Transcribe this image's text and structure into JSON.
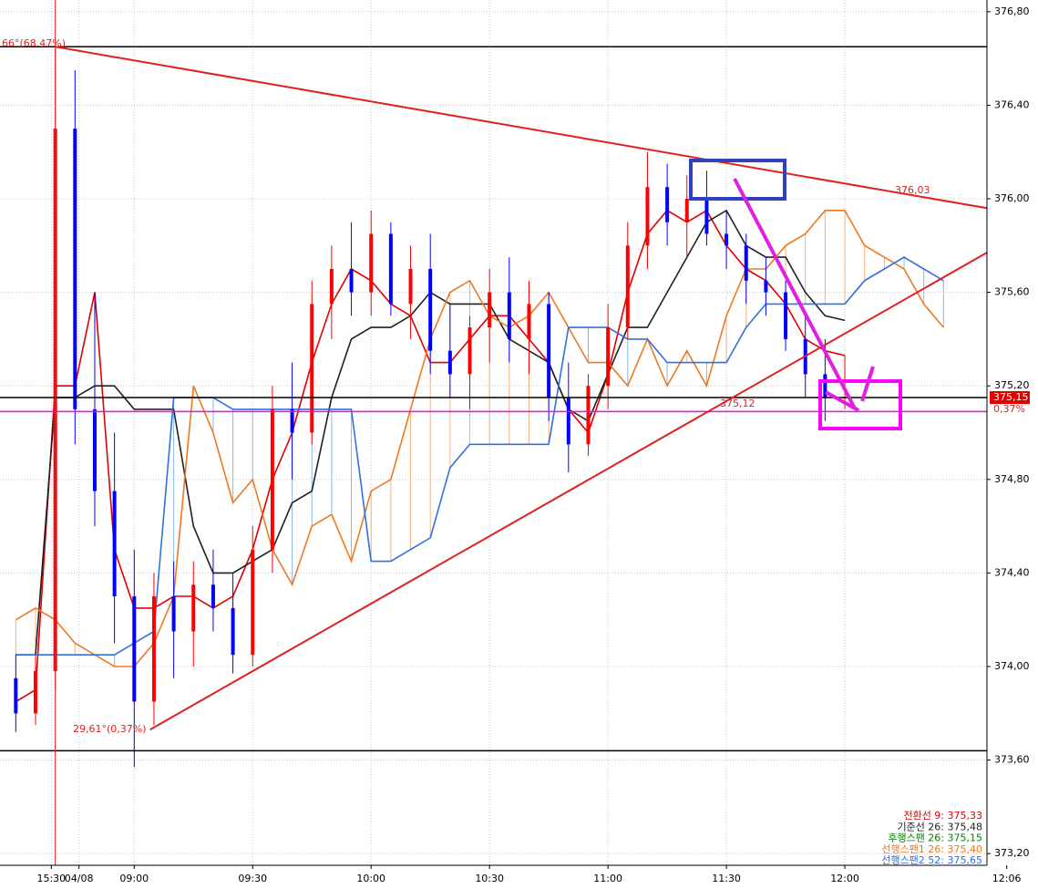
{
  "chart_data": {
    "type": "candlestick",
    "xlim": [
      -34,
      216
    ],
    "xticks": [
      {
        "value": -21,
        "label": "15:30"
      },
      {
        "value": -14,
        "label": "04/08"
      },
      {
        "value": 0,
        "label": "09:00"
      },
      {
        "value": 30,
        "label": "09:30"
      },
      {
        "value": 60,
        "label": "10:00"
      },
      {
        "value": 90,
        "label": "10:30"
      },
      {
        "value": 120,
        "label": "11:00"
      },
      {
        "value": 150,
        "label": "11:30"
      },
      {
        "value": 180,
        "label": "12:00"
      },
      {
        "value": 221,
        "label": "12:06"
      }
    ],
    "ylim": [
      373.15,
      376.85
    ],
    "yticks": [
      {
        "value": 373.2,
        "label": "373,20"
      },
      {
        "value": 373.6,
        "label": "373,60"
      },
      {
        "value": 374.0,
        "label": "374,00"
      },
      {
        "value": 374.4,
        "label": "374,40"
      },
      {
        "value": 374.8,
        "label": "374,80"
      },
      {
        "value": 375.2,
        "label": "375,20"
      },
      {
        "value": 375.6,
        "label": "375,60"
      },
      {
        "value": 376.0,
        "label": "376,00"
      },
      {
        "value": 376.4,
        "label": "376,40"
      },
      {
        "value": 376.8,
        "label": "376,80"
      }
    ],
    "grid": true,
    "up_color": "#ff0000",
    "down_color": "#0000ff",
    "candles": {
      "x": [
        -30,
        -25,
        -20,
        -15,
        -10,
        -5,
        0,
        5,
        10,
        15,
        20,
        25,
        30,
        35,
        40,
        45,
        50,
        55,
        60,
        65,
        70,
        75,
        80,
        85,
        90,
        95,
        100,
        105,
        110,
        115,
        120,
        125,
        130,
        135,
        140,
        145,
        150,
        155,
        160,
        165,
        170,
        175,
        180
      ],
      "open": [
        373.95,
        373.8,
        373.98,
        376.3,
        375.1,
        374.75,
        374.3,
        373.85,
        374.3,
        374.15,
        374.35,
        374.25,
        374.05,
        374.5,
        375.1,
        375.0,
        375.55,
        375.7,
        375.6,
        375.85,
        375.55,
        375.7,
        375.35,
        375.25,
        375.45,
        375.6,
        375.4,
        375.55,
        375.15,
        374.95,
        375.2,
        375.45,
        375.8,
        376.05,
        375.9,
        376.0,
        375.85,
        375.8,
        375.65,
        375.6,
        375.4,
        375.25,
        375.15
      ],
      "high": [
        374.05,
        374.05,
        376.65,
        376.55,
        375.6,
        375.0,
        374.5,
        374.4,
        374.45,
        374.45,
        374.5,
        374.4,
        374.6,
        375.2,
        375.3,
        375.65,
        375.8,
        375.9,
        375.95,
        375.9,
        375.8,
        375.85,
        375.55,
        375.5,
        375.7,
        375.75,
        375.65,
        375.6,
        375.3,
        375.25,
        375.55,
        375.9,
        376.2,
        376.15,
        376.1,
        376.12,
        375.95,
        375.85,
        375.75,
        375.65,
        375.5,
        375.4,
        375.33
      ],
      "low": [
        373.72,
        373.75,
        373.9,
        374.95,
        374.6,
        374.1,
        373.57,
        373.75,
        373.95,
        374.0,
        374.15,
        373.97,
        374.0,
        374.4,
        374.8,
        374.95,
        375.4,
        375.5,
        375.5,
        375.5,
        375.4,
        375.25,
        375.15,
        375.1,
        375.3,
        375.3,
        375.25,
        375.05,
        374.83,
        374.9,
        375.1,
        375.4,
        375.7,
        375.8,
        375.75,
        375.8,
        375.7,
        375.55,
        375.5,
        375.35,
        375.15,
        375.05,
        375.1
      ],
      "close": [
        373.8,
        373.98,
        376.3,
        375.1,
        374.75,
        374.3,
        373.85,
        374.3,
        374.15,
        374.35,
        374.25,
        374.05,
        374.5,
        375.1,
        375.0,
        375.55,
        375.7,
        375.6,
        375.85,
        375.55,
        375.7,
        375.35,
        375.25,
        375.45,
        375.6,
        375.4,
        375.55,
        375.15,
        374.95,
        375.2,
        375.45,
        375.8,
        376.05,
        375.9,
        376.0,
        375.85,
        375.8,
        375.65,
        375.6,
        375.4,
        375.25,
        375.15,
        375.15
      ]
    },
    "series": [
      {
        "name": "전환선 9: 375,33",
        "color": "#e00000",
        "x": [
          -30,
          -25,
          -20,
          -15,
          -10,
          -5,
          0,
          5,
          10,
          15,
          20,
          25,
          30,
          35,
          40,
          45,
          50,
          55,
          60,
          65,
          70,
          75,
          80,
          85,
          90,
          95,
          100,
          105,
          110,
          115,
          120,
          125,
          130,
          135,
          140,
          145,
          150,
          155,
          160,
          165,
          170,
          175,
          180
        ],
        "values": [
          373.85,
          373.9,
          375.2,
          375.2,
          375.6,
          374.5,
          374.25,
          374.25,
          374.3,
          374.3,
          374.25,
          374.3,
          374.5,
          374.8,
          375.0,
          375.3,
          375.55,
          375.7,
          375.65,
          375.55,
          375.5,
          375.3,
          375.3,
          375.4,
          375.5,
          375.5,
          375.4,
          375.3,
          375.1,
          375.0,
          375.25,
          375.6,
          375.85,
          375.95,
          375.9,
          375.95,
          375.8,
          375.7,
          375.65,
          375.55,
          375.4,
          375.35,
          375.33
        ]
      },
      {
        "name": "기준선 26: 375,48",
        "color": "#202020",
        "x": [
          -30,
          -25,
          -20,
          -15,
          -10,
          -5,
          0,
          5,
          10,
          15,
          20,
          25,
          30,
          35,
          40,
          45,
          50,
          55,
          60,
          65,
          70,
          75,
          80,
          85,
          90,
          95,
          100,
          105,
          110,
          115,
          120,
          125,
          130,
          135,
          140,
          145,
          150,
          155,
          160,
          165,
          170,
          175,
          180
        ],
        "values": [
          374.05,
          374.05,
          375.15,
          375.15,
          375.2,
          375.2,
          375.1,
          375.1,
          375.1,
          374.6,
          374.4,
          374.4,
          374.45,
          374.5,
          374.7,
          374.75,
          375.15,
          375.4,
          375.45,
          375.45,
          375.5,
          375.6,
          375.55,
          375.55,
          375.55,
          375.4,
          375.35,
          375.3,
          375.1,
          375.05,
          375.25,
          375.45,
          375.45,
          375.6,
          375.75,
          375.9,
          375.95,
          375.8,
          375.75,
          375.75,
          375.6,
          375.5,
          375.48
        ]
      },
      {
        "name": "후행스팬 26: 375,15",
        "color": "#008000",
        "x": [],
        "values": []
      },
      {
        "name": "선행스팬1 26: 375,40",
        "color": "#f07820",
        "x": [
          -30,
          -25,
          -20,
          -15,
          -10,
          -5,
          0,
          5,
          10,
          15,
          20,
          25,
          30,
          35,
          40,
          45,
          50,
          55,
          60,
          65,
          70,
          75,
          80,
          85,
          90,
          95,
          100,
          105,
          110,
          115,
          120,
          125,
          130,
          135,
          140,
          145,
          150,
          155,
          160,
          165,
          170,
          175,
          180,
          185,
          190,
          195,
          200,
          205
        ],
        "values": [
          374.2,
          374.25,
          374.2,
          374.1,
          374.05,
          374.0,
          374.0,
          374.1,
          374.3,
          375.2,
          375.0,
          374.7,
          374.8,
          374.5,
          374.35,
          374.6,
          374.65,
          374.45,
          374.75,
          374.8,
          375.1,
          375.4,
          375.6,
          375.65,
          375.5,
          375.45,
          375.5,
          375.6,
          375.45,
          375.3,
          375.3,
          375.2,
          375.4,
          375.2,
          375.35,
          375.2,
          375.5,
          375.7,
          375.7,
          375.8,
          375.85,
          375.95,
          375.95,
          375.8,
          375.75,
          375.7,
          375.55,
          375.45
        ]
      },
      {
        "name": "선행스팬2 52: 375,65",
        "color": "#3070e0",
        "x": [
          -30,
          -25,
          -20,
          -15,
          -10,
          -5,
          0,
          5,
          10,
          15,
          20,
          25,
          30,
          35,
          40,
          45,
          50,
          55,
          60,
          65,
          70,
          75,
          80,
          85,
          90,
          95,
          100,
          105,
          110,
          115,
          120,
          125,
          130,
          135,
          140,
          145,
          150,
          155,
          160,
          165,
          170,
          175,
          180,
          185,
          190,
          195,
          200,
          205
        ],
        "values": [
          374.05,
          374.05,
          374.05,
          374.05,
          374.05,
          374.05,
          374.1,
          374.15,
          375.15,
          375.15,
          375.15,
          375.1,
          375.1,
          375.1,
          375.1,
          375.1,
          375.1,
          375.1,
          374.45,
          374.45,
          374.5,
          374.55,
          374.85,
          374.95,
          374.95,
          374.95,
          374.95,
          374.95,
          375.45,
          375.45,
          375.45,
          375.4,
          375.4,
          375.3,
          375.3,
          375.3,
          375.3,
          375.45,
          375.55,
          375.55,
          375.55,
          375.55,
          375.55,
          375.65,
          375.7,
          375.75,
          375.7,
          375.65
        ]
      }
    ],
    "levels": [
      {
        "value": 376.65,
        "color": "#000000"
      },
      {
        "value": 375.15,
        "color": "#000000"
      },
      {
        "value": 375.09,
        "color": "#ff00ff"
      },
      {
        "value": 373.64,
        "color": "#000000"
      }
    ],
    "trendlines": [
      {
        "from": [
          -20,
          376.65
        ],
        "to": [
          216,
          375.96
        ],
        "color": "#e02020"
      },
      {
        "from": [
          4,
          373.73
        ],
        "to": [
          216,
          375.77
        ],
        "color": "#e02020"
      }
    ],
    "vline": {
      "value": -20,
      "color": "#e02020"
    },
    "annotations": [
      "66°(68.47%)",
      "376,03",
      "375,12",
      "29,61°(0,37%)"
    ],
    "last_price": {
      "value": 375.15,
      "label": "375,15"
    },
    "last_change": "0,37%"
  }
}
